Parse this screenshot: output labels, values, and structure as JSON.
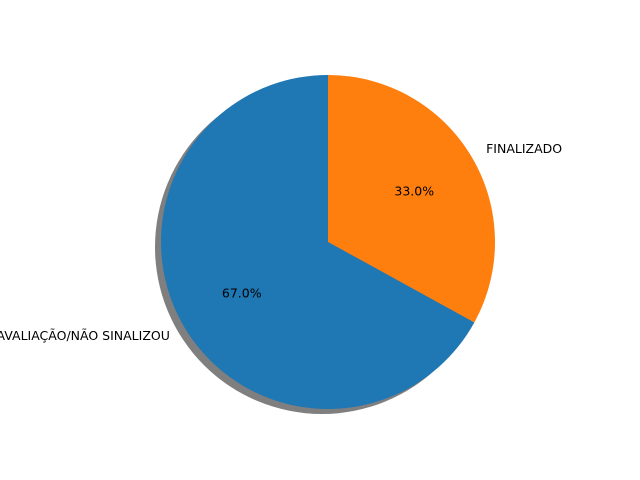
{
  "chart_data": {
    "type": "pie",
    "title": "",
    "categories": [
      "FINALIZADO",
      "AGUARDANDO AVALIAÇÃO/NÃO SINALIZOU"
    ],
    "values": [
      33.0,
      67.0
    ],
    "percent_labels": [
      "33.0%",
      "67.0%"
    ],
    "colors": [
      "#ff7f0e",
      "#1f77b4"
    ],
    "start_angle_deg": 90,
    "direction": "clockwise",
    "shadow": true,
    "legend": "none"
  }
}
